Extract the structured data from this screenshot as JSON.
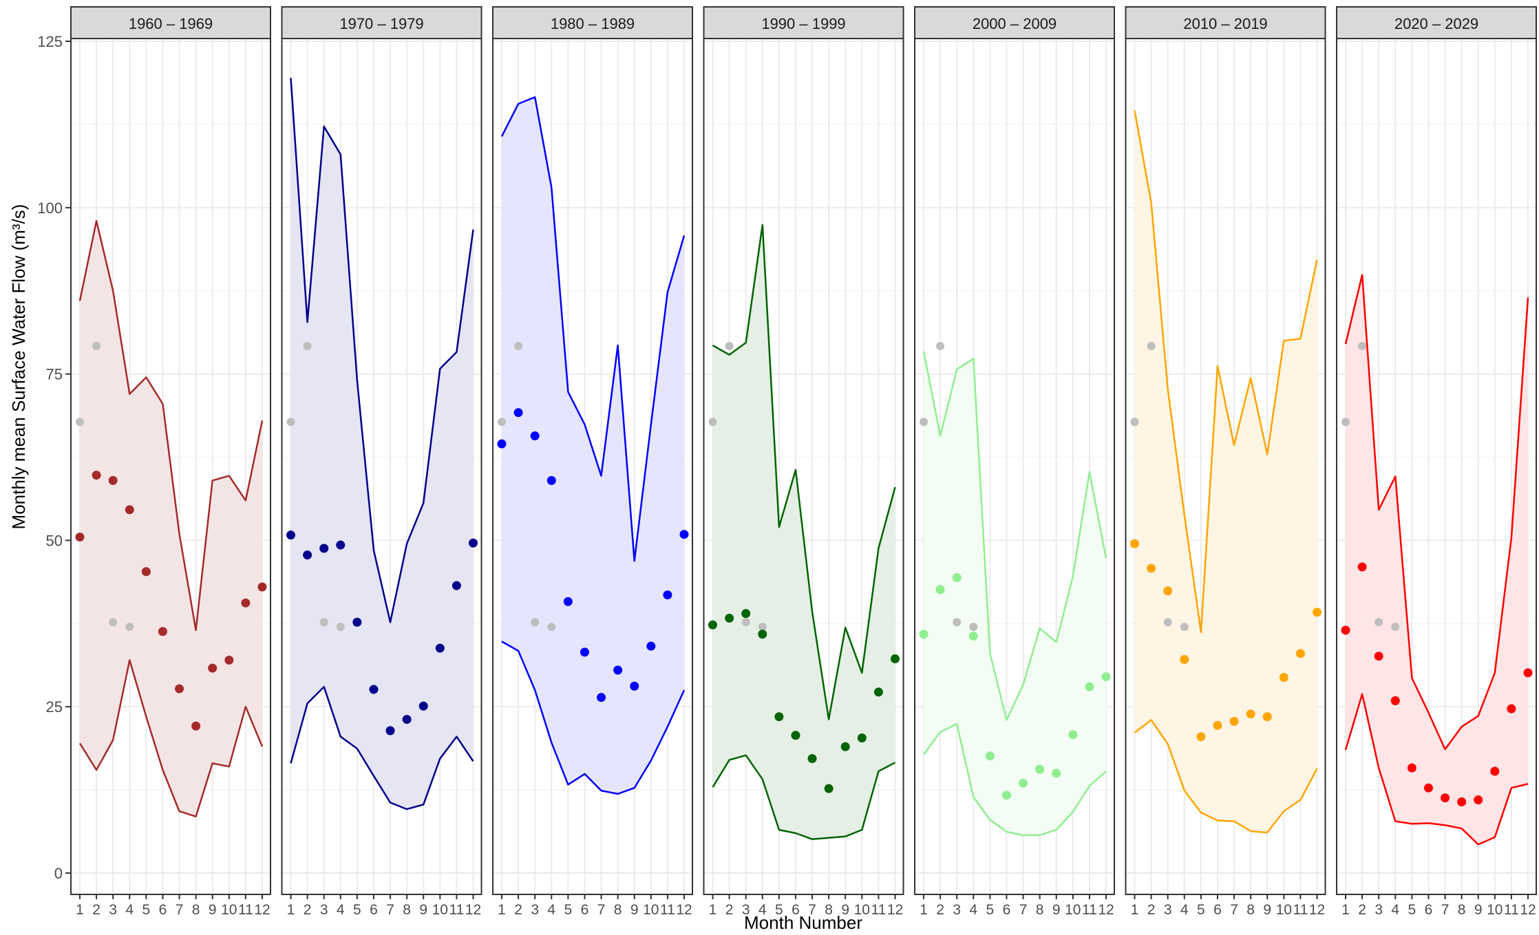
{
  "chart_data": {
    "type": "line",
    "ylabel": "Monthly mean Surface Water Flow (m³/s)",
    "xlabel": "Month Number",
    "x": [
      1,
      2,
      3,
      4,
      5,
      6,
      7,
      8,
      9,
      10,
      11,
      12
    ],
    "x_tick_labels": [
      "1",
      "2",
      "3",
      "4",
      "5",
      "6",
      "7",
      "8",
      "9",
      "10",
      "11",
      "12"
    ],
    "ylim": [
      0,
      125
    ],
    "y_ticks": [
      0,
      25,
      50,
      75,
      100,
      125
    ],
    "grid": true,
    "baseline_color": "#bebebe",
    "baseline_months": [
      1,
      2,
      3,
      4
    ],
    "baseline_values": [
      67.8,
      79.2,
      37.7,
      37.0
    ],
    "panels": [
      {
        "label": "1960 – 1969",
        "color": "#a52a2a",
        "fill": "#f4e5e5",
        "mean": [
          50.5,
          59.8,
          59.0,
          54.6,
          45.3,
          36.3,
          27.7,
          22.1,
          30.8,
          32.0,
          40.6,
          43.0
        ],
        "upper": [
          86.0,
          98.0,
          87.5,
          72.0,
          74.5,
          70.5,
          51.0,
          36.5,
          59.0,
          59.7,
          56.0,
          68.0
        ],
        "lower": [
          19.5,
          15.5,
          20.0,
          32.0,
          23.5,
          15.5,
          9.3,
          8.5,
          16.5,
          16.0,
          25.0,
          19.0
        ]
      },
      {
        "label": "1970 – 1979",
        "color": "#00008b",
        "fill": "#e5e5f3",
        "mean": [
          50.8,
          47.8,
          48.8,
          49.3,
          37.7,
          27.6,
          21.4,
          23.1,
          25.1,
          33.8,
          43.2,
          49.6
        ],
        "upper": [
          119.5,
          82.8,
          112.2,
          108.0,
          74.0,
          48.5,
          37.7,
          49.5,
          55.6,
          75.8,
          78.3,
          96.7
        ],
        "lower": [
          16.5,
          25.5,
          28.0,
          20.5,
          18.7,
          14.6,
          10.6,
          9.6,
          10.3,
          17.2,
          20.5,
          16.8
        ]
      },
      {
        "label": "1980 – 1989",
        "color": "#0000ff",
        "fill": "#e5e5ff",
        "mean": [
          64.5,
          69.2,
          65.7,
          59.0,
          40.8,
          33.2,
          26.4,
          30.5,
          28.1,
          34.1,
          41.8,
          50.9
        ],
        "upper": [
          110.7,
          115.6,
          116.6,
          103.0,
          72.3,
          67.4,
          59.7,
          79.3,
          46.9,
          67.4,
          87.3,
          95.8
        ],
        "lower": [
          34.8,
          33.4,
          27.5,
          19.6,
          13.3,
          14.9,
          12.4,
          11.9,
          12.8,
          16.9,
          22.0,
          27.5
        ]
      },
      {
        "label": "1990 – 1999",
        "color": "#006400",
        "fill": "#e5efe5",
        "mean": [
          37.3,
          38.3,
          39.0,
          35.9,
          23.5,
          20.7,
          17.2,
          12.7,
          19.0,
          20.3,
          27.2,
          32.2
        ],
        "upper": [
          79.3,
          77.9,
          79.7,
          97.4,
          52.0,
          60.6,
          39.3,
          23.1,
          36.9,
          30.1,
          48.8,
          58.0
        ],
        "lower": [
          12.9,
          17.0,
          17.7,
          14.1,
          6.5,
          6.0,
          5.1,
          5.3,
          5.5,
          6.5,
          15.3,
          16.6
        ]
      },
      {
        "label": "2000 – 2009",
        "color": "#90ee90",
        "fill": "#f3fdf3",
        "mean": [
          35.9,
          42.6,
          44.4,
          35.6,
          17.6,
          11.7,
          13.5,
          15.6,
          15.0,
          20.8,
          28.0,
          29.5
        ],
        "upper": [
          78.4,
          65.7,
          75.7,
          77.3,
          33.0,
          23.0,
          28.3,
          36.8,
          34.7,
          44.6,
          60.3,
          47.3
        ],
        "lower": [
          17.8,
          21.2,
          22.4,
          11.4,
          8.0,
          6.2,
          5.7,
          5.7,
          6.5,
          9.2,
          13.1,
          15.3
        ]
      },
      {
        "label": "2010 – 2019",
        "color": "#ffa500",
        "fill": "#fff5e5",
        "mean": [
          49.5,
          45.8,
          42.4,
          32.1,
          20.5,
          22.2,
          22.8,
          23.9,
          23.5,
          29.4,
          33.0,
          39.2
        ],
        "upper": [
          114.6,
          100.7,
          72.7,
          53.8,
          36.2,
          76.2,
          64.3,
          74.4,
          62.9,
          80.0,
          80.3,
          92.2
        ],
        "lower": [
          21.1,
          23.0,
          19.4,
          12.4,
          9.1,
          7.9,
          7.8,
          6.3,
          6.1,
          9.3,
          11.0,
          15.7
        ]
      },
      {
        "label": "2020 – 2029",
        "color": "#ff0000",
        "fill": "#ffe5e5",
        "mean": [
          36.5,
          46.0,
          32.6,
          25.9,
          15.8,
          12.8,
          11.3,
          10.7,
          11.0,
          15.3,
          24.7,
          30.1
        ],
        "upper": [
          79.5,
          89.9,
          54.6,
          59.6,
          29.3,
          24.1,
          18.6,
          22.0,
          23.6,
          30.1,
          50.4,
          86.5
        ],
        "lower": [
          18.5,
          26.9,
          15.8,
          7.8,
          7.4,
          7.5,
          7.2,
          6.7,
          4.3,
          5.4,
          12.8,
          13.4
        ]
      }
    ]
  }
}
